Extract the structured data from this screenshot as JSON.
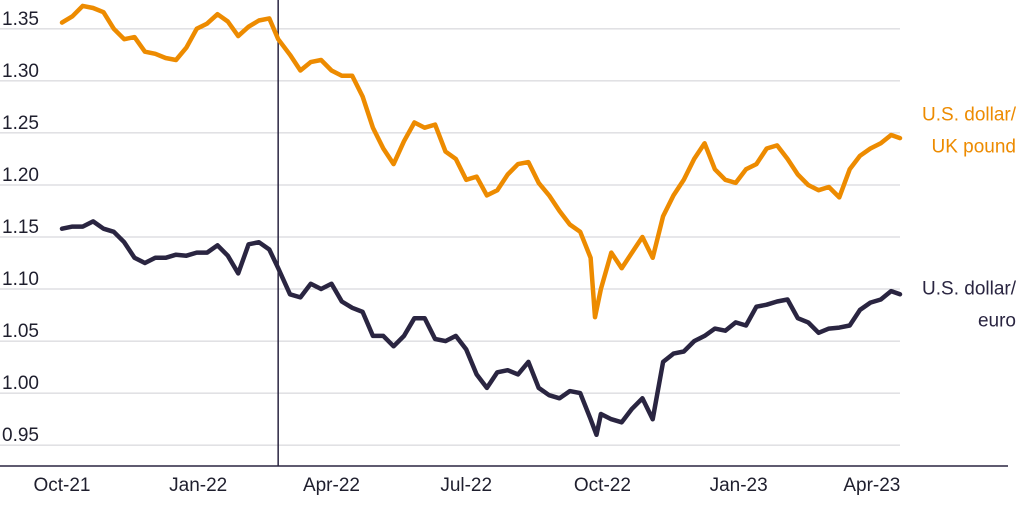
{
  "chart_data": {
    "type": "line",
    "grid": "horizontal",
    "y_ticks": [
      "0.95",
      "1.00",
      "1.05",
      "1.10",
      "1.15",
      "1.20",
      "1.25",
      "1.30",
      "1.35"
    ],
    "y_tick_values": [
      0.95,
      1.0,
      1.05,
      1.1,
      1.15,
      1.2,
      1.25,
      1.3,
      1.35
    ],
    "x_ticks": [
      "Oct-21",
      "Jan-22",
      "Apr-22",
      "Jul-22",
      "Oct-22",
      "Jan-23",
      "Apr-23"
    ],
    "x_tick_dates": [
      "2021-10-01",
      "2022-01-01",
      "2022-04-01",
      "2022-07-01",
      "2022-10-01",
      "2023-01-01",
      "2023-04-01"
    ],
    "x_range": [
      "2021-10-01",
      "2023-04-20"
    ],
    "y_range": [
      0.93,
      1.37
    ],
    "reference_line_date": "2022-02-24",
    "series": [
      {
        "name": "U.S. dollar/ UK pound",
        "label_lines": [
          "U.S. dollar/",
          "UK pound"
        ],
        "color": "#ED8B00",
        "points": [
          [
            "2021-10-01",
            1.356
          ],
          [
            "2021-10-08",
            1.362
          ],
          [
            "2021-10-15",
            1.372
          ],
          [
            "2021-10-22",
            1.37
          ],
          [
            "2021-10-29",
            1.366
          ],
          [
            "2021-11-05",
            1.35
          ],
          [
            "2021-11-12",
            1.34
          ],
          [
            "2021-11-19",
            1.342
          ],
          [
            "2021-11-26",
            1.328
          ],
          [
            "2021-12-03",
            1.326
          ],
          [
            "2021-12-10",
            1.322
          ],
          [
            "2021-12-17",
            1.32
          ],
          [
            "2021-12-24",
            1.332
          ],
          [
            "2021-12-31",
            1.35
          ],
          [
            "2022-01-07",
            1.355
          ],
          [
            "2022-01-14",
            1.364
          ],
          [
            "2022-01-21",
            1.357
          ],
          [
            "2022-01-28",
            1.343
          ],
          [
            "2022-02-04",
            1.352
          ],
          [
            "2022-02-11",
            1.358
          ],
          [
            "2022-02-18",
            1.36
          ],
          [
            "2022-02-24",
            1.34
          ],
          [
            "2022-03-04",
            1.325
          ],
          [
            "2022-03-11",
            1.31
          ],
          [
            "2022-03-18",
            1.318
          ],
          [
            "2022-03-25",
            1.32
          ],
          [
            "2022-04-01",
            1.31
          ],
          [
            "2022-04-08",
            1.305
          ],
          [
            "2022-04-15",
            1.305
          ],
          [
            "2022-04-22",
            1.285
          ],
          [
            "2022-04-29",
            1.255
          ],
          [
            "2022-05-06",
            1.235
          ],
          [
            "2022-05-13",
            1.22
          ],
          [
            "2022-05-20",
            1.242
          ],
          [
            "2022-05-27",
            1.26
          ],
          [
            "2022-06-03",
            1.255
          ],
          [
            "2022-06-10",
            1.258
          ],
          [
            "2022-06-17",
            1.232
          ],
          [
            "2022-06-24",
            1.225
          ],
          [
            "2022-07-01",
            1.205
          ],
          [
            "2022-07-08",
            1.208
          ],
          [
            "2022-07-15",
            1.19
          ],
          [
            "2022-07-22",
            1.195
          ],
          [
            "2022-07-29",
            1.21
          ],
          [
            "2022-08-05",
            1.22
          ],
          [
            "2022-08-12",
            1.222
          ],
          [
            "2022-08-19",
            1.202
          ],
          [
            "2022-08-26",
            1.19
          ],
          [
            "2022-09-02",
            1.175
          ],
          [
            "2022-09-09",
            1.162
          ],
          [
            "2022-09-16",
            1.155
          ],
          [
            "2022-09-23",
            1.13
          ],
          [
            "2022-09-26",
            1.073
          ],
          [
            "2022-09-30",
            1.1
          ],
          [
            "2022-10-07",
            1.135
          ],
          [
            "2022-10-14",
            1.12
          ],
          [
            "2022-10-21",
            1.135
          ],
          [
            "2022-10-28",
            1.15
          ],
          [
            "2022-11-04",
            1.13
          ],
          [
            "2022-11-11",
            1.17
          ],
          [
            "2022-11-18",
            1.19
          ],
          [
            "2022-11-25",
            1.205
          ],
          [
            "2022-12-02",
            1.225
          ],
          [
            "2022-12-09",
            1.24
          ],
          [
            "2022-12-16",
            1.215
          ],
          [
            "2022-12-23",
            1.205
          ],
          [
            "2022-12-30",
            1.202
          ],
          [
            "2023-01-06",
            1.215
          ],
          [
            "2023-01-13",
            1.22
          ],
          [
            "2023-01-20",
            1.235
          ],
          [
            "2023-01-27",
            1.238
          ],
          [
            "2023-02-03",
            1.225
          ],
          [
            "2023-02-10",
            1.21
          ],
          [
            "2023-02-17",
            1.2
          ],
          [
            "2023-02-24",
            1.195
          ],
          [
            "2023-03-03",
            1.198
          ],
          [
            "2023-03-10",
            1.188
          ],
          [
            "2023-03-17",
            1.215
          ],
          [
            "2023-03-24",
            1.228
          ],
          [
            "2023-03-31",
            1.235
          ],
          [
            "2023-04-07",
            1.24
          ],
          [
            "2023-04-14",
            1.248
          ],
          [
            "2023-04-20",
            1.245
          ]
        ]
      },
      {
        "name": "U.S. dollar/ euro",
        "label_lines": [
          "U.S. dollar/",
          "euro"
        ],
        "color": "#2A2541",
        "points": [
          [
            "2021-10-01",
            1.158
          ],
          [
            "2021-10-08",
            1.16
          ],
          [
            "2021-10-15",
            1.16
          ],
          [
            "2021-10-22",
            1.165
          ],
          [
            "2021-10-29",
            1.158
          ],
          [
            "2021-11-05",
            1.155
          ],
          [
            "2021-11-12",
            1.145
          ],
          [
            "2021-11-19",
            1.13
          ],
          [
            "2021-11-26",
            1.125
          ],
          [
            "2021-12-03",
            1.13
          ],
          [
            "2021-12-10",
            1.13
          ],
          [
            "2021-12-17",
            1.133
          ],
          [
            "2021-12-24",
            1.132
          ],
          [
            "2021-12-31",
            1.135
          ],
          [
            "2022-01-07",
            1.135
          ],
          [
            "2022-01-14",
            1.142
          ],
          [
            "2022-01-21",
            1.132
          ],
          [
            "2022-01-28",
            1.115
          ],
          [
            "2022-02-04",
            1.143
          ],
          [
            "2022-02-11",
            1.145
          ],
          [
            "2022-02-18",
            1.138
          ],
          [
            "2022-02-24",
            1.12
          ],
          [
            "2022-03-04",
            1.095
          ],
          [
            "2022-03-11",
            1.092
          ],
          [
            "2022-03-18",
            1.105
          ],
          [
            "2022-03-25",
            1.1
          ],
          [
            "2022-04-01",
            1.105
          ],
          [
            "2022-04-08",
            1.088
          ],
          [
            "2022-04-15",
            1.082
          ],
          [
            "2022-04-22",
            1.078
          ],
          [
            "2022-04-29",
            1.055
          ],
          [
            "2022-05-06",
            1.055
          ],
          [
            "2022-05-13",
            1.045
          ],
          [
            "2022-05-20",
            1.055
          ],
          [
            "2022-05-27",
            1.072
          ],
          [
            "2022-06-03",
            1.072
          ],
          [
            "2022-06-10",
            1.052
          ],
          [
            "2022-06-17",
            1.05
          ],
          [
            "2022-06-24",
            1.055
          ],
          [
            "2022-07-01",
            1.042
          ],
          [
            "2022-07-08",
            1.018
          ],
          [
            "2022-07-15",
            1.005
          ],
          [
            "2022-07-22",
            1.02
          ],
          [
            "2022-07-29",
            1.022
          ],
          [
            "2022-08-05",
            1.018
          ],
          [
            "2022-08-12",
            1.03
          ],
          [
            "2022-08-19",
            1.005
          ],
          [
            "2022-08-26",
            0.998
          ],
          [
            "2022-09-02",
            0.995
          ],
          [
            "2022-09-09",
            1.002
          ],
          [
            "2022-09-16",
            1.0
          ],
          [
            "2022-09-23",
            0.975
          ],
          [
            "2022-09-27",
            0.96
          ],
          [
            "2022-09-30",
            0.98
          ],
          [
            "2022-10-07",
            0.975
          ],
          [
            "2022-10-14",
            0.972
          ],
          [
            "2022-10-21",
            0.985
          ],
          [
            "2022-10-28",
            0.995
          ],
          [
            "2022-11-04",
            0.975
          ],
          [
            "2022-11-11",
            1.03
          ],
          [
            "2022-11-18",
            1.038
          ],
          [
            "2022-11-25",
            1.04
          ],
          [
            "2022-12-02",
            1.05
          ],
          [
            "2022-12-09",
            1.055
          ],
          [
            "2022-12-16",
            1.062
          ],
          [
            "2022-12-23",
            1.06
          ],
          [
            "2022-12-30",
            1.068
          ],
          [
            "2023-01-06",
            1.065
          ],
          [
            "2023-01-13",
            1.083
          ],
          [
            "2023-01-20",
            1.085
          ],
          [
            "2023-01-27",
            1.088
          ],
          [
            "2023-02-03",
            1.09
          ],
          [
            "2023-02-10",
            1.072
          ],
          [
            "2023-02-17",
            1.068
          ],
          [
            "2023-02-24",
            1.058
          ],
          [
            "2023-03-03",
            1.062
          ],
          [
            "2023-03-10",
            1.063
          ],
          [
            "2023-03-17",
            1.065
          ],
          [
            "2023-03-24",
            1.08
          ],
          [
            "2023-03-31",
            1.087
          ],
          [
            "2023-04-07",
            1.09
          ],
          [
            "2023-04-14",
            1.098
          ],
          [
            "2023-04-20",
            1.095
          ]
        ]
      }
    ]
  }
}
